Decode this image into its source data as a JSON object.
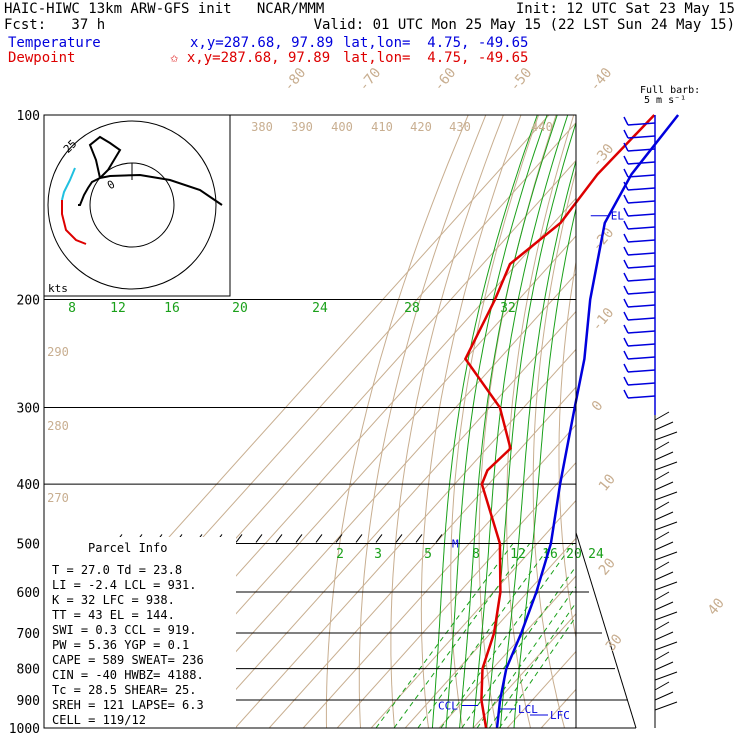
{
  "header": {
    "line1_left": "HAIC-HIWC 13km ARW-GFS init   NCAR/MMM",
    "line1_right": "Init: 12 UTC Sat 23 May 15",
    "line2_left": "Fcst:   37 h",
    "line2_right": "Valid: 01 UTC Mon 25 May 15 (22 LST Sun 24 May 15)",
    "temp_label": "Temperature",
    "temp_xy": "x,y=287.68, 97.89",
    "temp_latlon": "lat,lon=  4.75, -49.65",
    "dew_label": "Dewpoint",
    "dew_xy": "✩ x,y=287.68, 97.89",
    "dew_latlon": "lat,lon=  4.75, -49.65"
  },
  "colors": {
    "temperature": "#0000dd",
    "dewpoint": "#dd0000",
    "moist_adiabat": "#1aa01a",
    "dry_adiabat": "#c8ae90",
    "isobar": "#000000"
  },
  "barb_legend": {
    "line1": "Full barb:",
    "line2": "5 m s⁻¹"
  },
  "hodograph": {
    "ring_label": "25",
    "center_label": "0",
    "units": "kts"
  },
  "parcel_info": {
    "title": "Parcel Info",
    "rows": [
      "T   =   27.0 Td =  23.8",
      "LI  =   -2.4 LCL =  931.",
      "K   =     32 LFC =  938.",
      "TT  =     43 EL  =  144.",
      "SWI =    0.3 CCL =  919.",
      "PW  =   5.36 YGP =   0.1",
      "CAPE =   589 SWEAT=  236",
      "CIN  =   -40 HWBZ= 4188.",
      "Tc  =   28.5 SHEAR=  25.",
      "SREH =   121 LAPSE=  6.3",
      "CELL = 119/12"
    ]
  },
  "chart_data": {
    "type": "skew-t",
    "pressure_levels": [
      100,
      200,
      300,
      400,
      500,
      600,
      700,
      800,
      900,
      1000
    ],
    "pressure_labels": [
      "100",
      "200",
      "300",
      "400",
      "500",
      "600",
      "700",
      "800",
      "900",
      "1000"
    ],
    "dry_adiabat_labels": [
      "380",
      "390",
      "400",
      "410",
      "420",
      "430",
      "440",
      "290",
      "280",
      "270"
    ],
    "temperature_labels": [
      "-80",
      "-70",
      "-60",
      "-50",
      "-40",
      "-30",
      "-20",
      "-10",
      "0",
      "10",
      "20",
      "30",
      "40"
    ],
    "mixing_ratio_labels_upper": [
      "8",
      "12",
      "16",
      "20",
      "24",
      "28",
      "32"
    ],
    "mixing_ratio_labels_lower": [
      "2",
      "3",
      "5",
      "8",
      "12",
      "16",
      "20",
      "24"
    ],
    "annotations": {
      "el": "EL",
      "ccl": "CCL",
      "lcl": "LCL",
      "lfc": "LFC",
      "m": "M"
    },
    "series": [
      {
        "name": "Temperature",
        "points": [
          [
            100,
            -82
          ],
          [
            125,
            -80
          ],
          [
            150,
            -75
          ],
          [
            200,
            -59
          ],
          [
            250,
            -45
          ],
          [
            300,
            -35
          ],
          [
            400,
            -19
          ],
          [
            500,
            -6
          ],
          [
            600,
            2.6
          ],
          [
            700,
            9
          ],
          [
            800,
            14
          ],
          [
            900,
            20.5
          ],
          [
            1000,
            27
          ]
        ]
      },
      {
        "name": "Dewpoint",
        "points": [
          [
            100,
            -89
          ],
          [
            125,
            -90
          ],
          [
            150,
            -88
          ],
          [
            175,
            -92
          ],
          [
            200,
            -87
          ],
          [
            250,
            -80
          ],
          [
            300,
            -57
          ],
          [
            350,
            -43
          ],
          [
            380,
            -44
          ],
          [
            400,
            -42
          ],
          [
            500,
            -21
          ],
          [
            600,
            -8
          ],
          [
            700,
            1
          ],
          [
            800,
            7
          ],
          [
            900,
            15
          ],
          [
            1000,
            23.8
          ]
        ]
      }
    ]
  }
}
